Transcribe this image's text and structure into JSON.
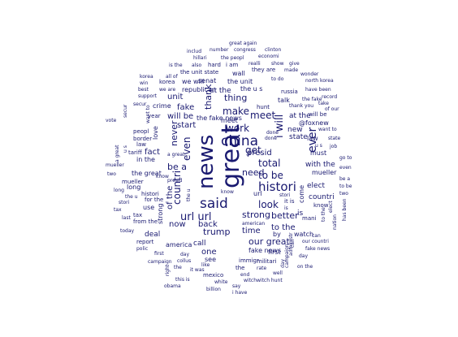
{
  "word_cloud": {
    "text_color": "#191970",
    "background": "#ffffff",
    "words": [
      "great again",
      "includ",
      "number",
      "congress",
      "clinton",
      "hillari",
      "the peopl",
      "economi",
      "is the",
      "also",
      "hard",
      "i am",
      "realli",
      "show",
      "give",
      "honor to",
      "all of",
      "korea",
      "the unit state",
      "wall",
      "they are",
      "made",
      "north korea",
      "to do",
      "win",
      "we will",
      "have been",
      "a veri",
      "honor",
      "senat",
      "the unit",
      "the u s",
      "russia",
      "record",
      "best",
      "we are",
      "republican",
      "wonder",
      "support",
      "of our",
      "secur",
      "unit",
      "crime",
      "hunt",
      "talk",
      "the fake",
      "take",
      "thank you",
      "we have",
      "fake",
      "bad",
      "world",
      "dollar",
      "much",
      "unit state",
      "hous",
      "is a",
      "vote",
      "year",
      "big",
      "thing",
      "fbi",
      "make",
      "at the",
      "will be",
      "@foxnew",
      "want to",
      "the fake news",
      "meet",
      "peopl",
      "thank",
      "done",
      "start",
      "love",
      "new",
      "congratul",
      "work",
      "job",
      "u s",
      "border",
      "china",
      "i will",
      "law",
      "state",
      "a great",
      "fact",
      "never",
      "presid",
      "get",
      "must",
      "go to",
      "tariff",
      "even",
      "with the",
      "in the",
      "total",
      "be a",
      "the great",
      "mueller",
      "to be",
      "elect",
      "two",
      "long",
      "histori",
      "countri",
      "news",
      "great",
      "url",
      "come",
      "for the",
      "the u",
      "know",
      "stori",
      "north",
      "ever",
      "trade",
      "said",
      "look",
      "the",
      "of the",
      "just",
      "better",
      "need",
      "it is",
      "is",
      "mani",
      "tax",
      "use",
      "nation",
      "url url",
      "has been",
      "democrat",
      "from the",
      "strong",
      "last",
      "back",
      "now",
      "to the",
      "today",
      "american",
      "by",
      "watch",
      "can",
      "the democrat",
      "deal",
      "dem",
      "that the",
      "trump",
      "time",
      "happen",
      "report",
      "america",
      "our great",
      "stop",
      "our countri",
      "polic",
      "administr",
      "call",
      "fake news",
      "first",
      "one",
      "day",
      "immigr",
      "like",
      "militari",
      "see",
      "on the",
      "forward",
      "collus",
      "right",
      "the",
      "well",
      "it was",
      "rate",
      "campaign",
      "end",
      "mexico",
      "this is",
      "witch",
      "witch hunt",
      "white",
      "say",
      "obama",
      "billion",
      "i have",
      "america great",
      "togeth",
      "make america"
    ]
  }
}
